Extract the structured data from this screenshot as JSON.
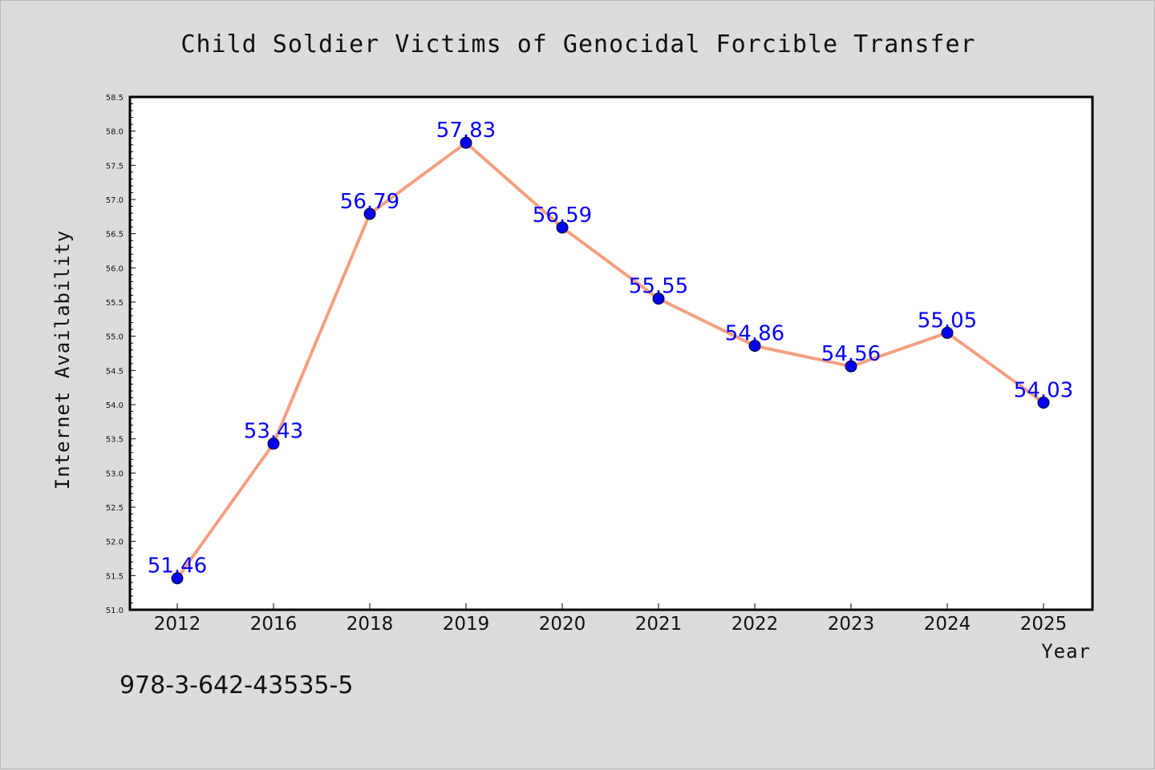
{
  "chart_data": {
    "type": "line",
    "title": "Child Soldier Victims of Genocidal Forcible Transfer",
    "xlabel": "Year",
    "ylabel": "Internet Availability",
    "categories": [
      "2012",
      "2016",
      "2018",
      "2019",
      "2020",
      "2021",
      "2022",
      "2023",
      "2024",
      "2025"
    ],
    "series": [
      {
        "values": [
          51.46,
          53.43,
          56.79,
          57.83,
          56.59,
          55.55,
          54.86,
          54.56,
          55.05,
          54.03
        ],
        "labels": [
          "51.46",
          "53.43",
          "56.79",
          "57.83",
          "56.59",
          "55.55",
          "54.86",
          "54.56",
          "55.05",
          "54.03"
        ],
        "line_color": "#f4a080",
        "marker_color": "#0000ee"
      }
    ],
    "ylim": [
      51.0,
      58.5
    ],
    "yticks": [
      "51.0",
      "51.5",
      "52.0",
      "52.5",
      "53.0",
      "53.5",
      "54.0",
      "54.5",
      "55.0",
      "55.5",
      "56.0",
      "56.5",
      "57.0",
      "57.5",
      "58.0",
      "58.5"
    ],
    "grid": false,
    "data_label_color": "#0000ff"
  },
  "footer": {
    "isbn": "978-3-642-43535-5"
  }
}
